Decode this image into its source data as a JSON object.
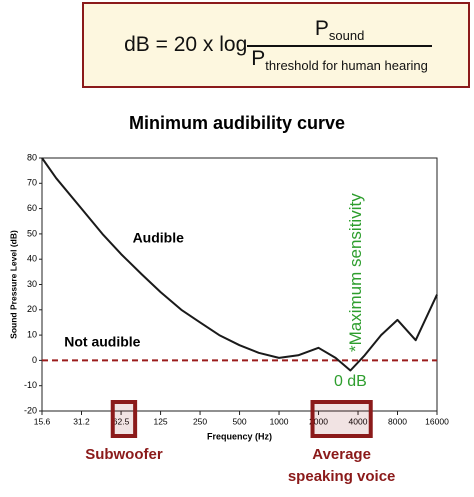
{
  "formula": {
    "lhs": "dB = 20 x log",
    "numerator": "P",
    "numerator_sub": "sound",
    "denominator": "P",
    "denominator_sub": "threshold for human hearing"
  },
  "chart_data": {
    "type": "line",
    "title": "Minimum audibility curve",
    "x_label": "Frequency (Hz)",
    "y_label": "Sound Pressure Level (dB)",
    "x": [
      15.6,
      20,
      31.2,
      45,
      62.5,
      90,
      125,
      180,
      250,
      350,
      500,
      700,
      1000,
      1400,
      2000,
      2700,
      3500,
      4500,
      6000,
      8000,
      11000,
      16000
    ],
    "series": [
      {
        "name": "Minimum audibility",
        "color": "#1a1a1a",
        "values": [
          80,
          72,
          60,
          50,
          42,
          34,
          27,
          20,
          15,
          10,
          6,
          3,
          1,
          2,
          5,
          1,
          -4,
          2,
          10,
          16,
          8,
          26
        ]
      }
    ],
    "x_scale": "log",
    "xlim": [
      15.6,
      16000
    ],
    "xticks": [
      15.6,
      31.2,
      62.5,
      125,
      250,
      500,
      1000,
      2000,
      4000,
      8000,
      16000
    ],
    "ylim": [
      -20,
      80
    ],
    "yticks": [
      -20,
      -10,
      0,
      10,
      20,
      30,
      40,
      50,
      60,
      70,
      80
    ],
    "reference_line": {
      "value": 0,
      "label": "0 dB",
      "color": "#9b1c1c"
    },
    "region_labels": [
      {
        "text": "Audible",
        "x": 120,
        "y": 48
      },
      {
        "text": "Not audible",
        "x": 45,
        "y": 7
      }
    ],
    "marker": {
      "x": 3500,
      "text": "*Maximum sensitivity",
      "color": "#2e9e2e"
    },
    "highlights": [
      {
        "lines": [
          "Subwoofer"
        ],
        "x": [
          54,
          80
        ]
      },
      {
        "lines": [
          "Average",
          "speaking voice"
        ],
        "x": [
          1800,
          5000
        ]
      }
    ],
    "highlight_color": "#8b1a1a"
  }
}
